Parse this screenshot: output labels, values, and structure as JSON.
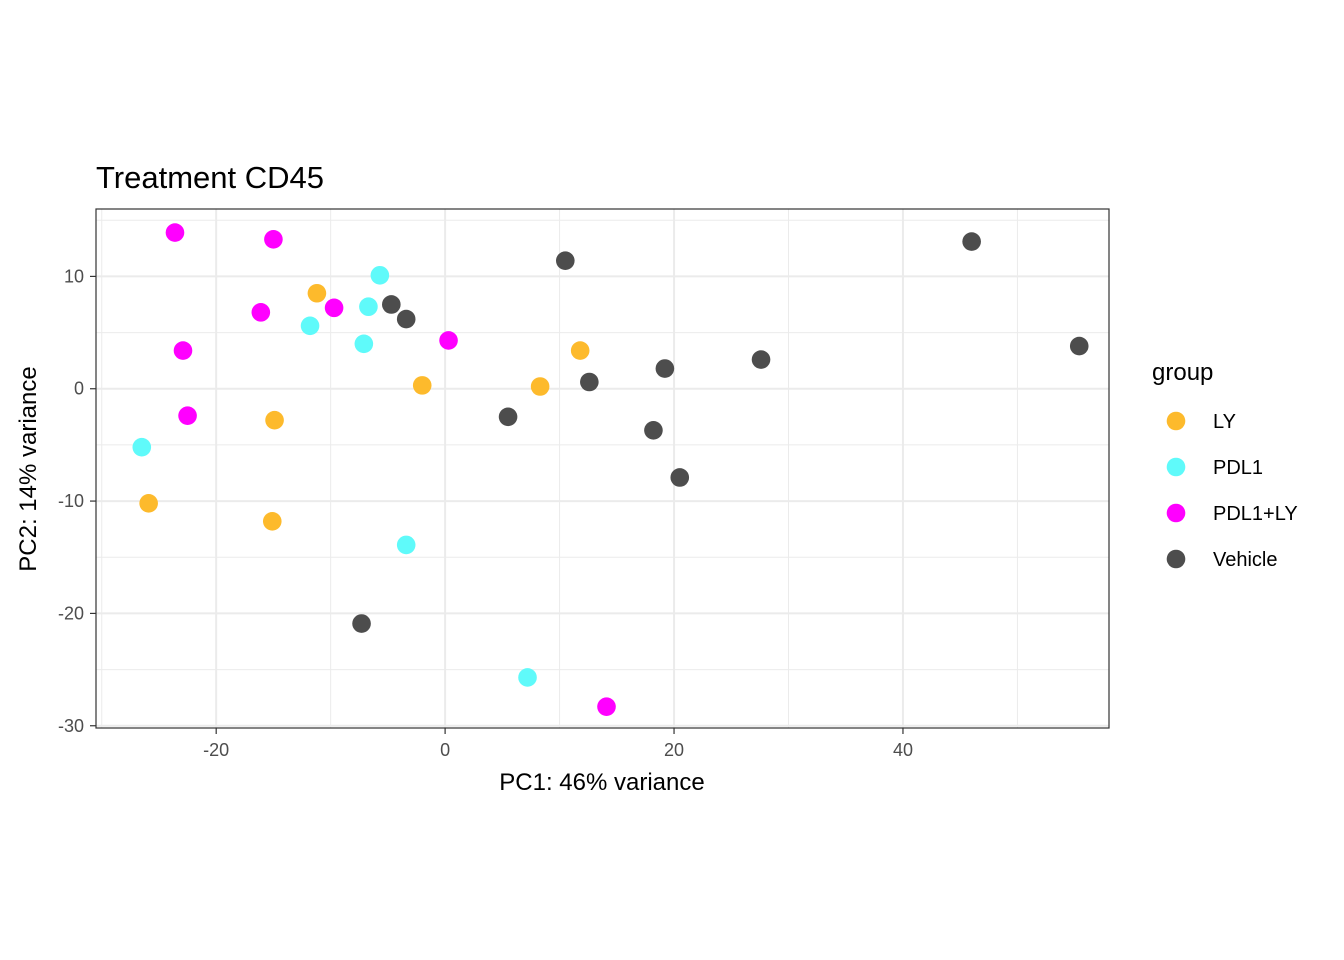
{
  "chart_data": {
    "type": "scatter",
    "title": "Treatment CD45",
    "xlabel": "PC1: 46% variance",
    "ylabel": "PC2: 14% variance",
    "xlim": [
      -30.5,
      58
    ],
    "ylim": [
      -30.2,
      16
    ],
    "x_ticks": [
      -20,
      0,
      20,
      40
    ],
    "y_ticks": [
      -30,
      -20,
      -10,
      0,
      10
    ],
    "x_tick_labels": [
      "-20",
      "0",
      "20",
      "40"
    ],
    "y_tick_labels": [
      "-30",
      "-20",
      "-10",
      "0",
      "10"
    ],
    "grid": true,
    "legend": {
      "title": "group",
      "position": "right"
    },
    "series": [
      {
        "name": "LY",
        "color": "#FDBA2C",
        "points": [
          [
            -11.2,
            8.5
          ],
          [
            11.8,
            3.4
          ],
          [
            -2.0,
            0.3
          ],
          [
            8.3,
            0.2
          ],
          [
            -14.9,
            -2.8
          ],
          [
            -25.9,
            -10.2
          ],
          [
            -15.1,
            -11.8
          ]
        ]
      },
      {
        "name": "PDL1",
        "color": "#5FFAFA",
        "points": [
          [
            -5.7,
            10.1
          ],
          [
            -6.7,
            7.3
          ],
          [
            -11.8,
            5.6
          ],
          [
            -7.1,
            4.0
          ],
          [
            -26.5,
            -5.2
          ],
          [
            -3.4,
            -13.9
          ],
          [
            7.2,
            -25.7
          ]
        ]
      },
      {
        "name": "PDL1+LY",
        "color": "#FF00FF",
        "points": [
          [
            -23.6,
            13.9
          ],
          [
            -15.0,
            13.3
          ],
          [
            -9.7,
            7.2
          ],
          [
            -16.1,
            6.8
          ],
          [
            0.3,
            4.3
          ],
          [
            -22.9,
            3.4
          ],
          [
            -22.5,
            -2.4
          ],
          [
            14.1,
            -28.3
          ]
        ]
      },
      {
        "name": "Vehicle",
        "color": "#4D4D4D",
        "points": [
          [
            46.0,
            13.1
          ],
          [
            10.5,
            11.4
          ],
          [
            -4.7,
            7.5
          ],
          [
            -3.4,
            6.2
          ],
          [
            55.4,
            3.8
          ],
          [
            27.6,
            2.6
          ],
          [
            19.2,
            1.8
          ],
          [
            12.6,
            0.6
          ],
          [
            5.5,
            -2.5
          ],
          [
            18.2,
            -3.7
          ],
          [
            20.5,
            -7.9
          ],
          [
            -7.3,
            -20.9
          ]
        ]
      }
    ]
  }
}
